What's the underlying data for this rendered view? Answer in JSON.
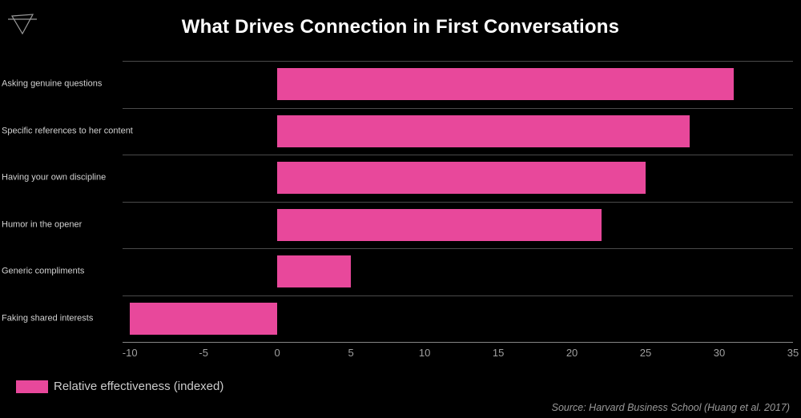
{
  "header": {
    "title": "What Drives Connection in First Conversations",
    "logo_icon": "earth-triangle-icon"
  },
  "legend": {
    "label": "Relative effectiveness (indexed)",
    "swatch_color": "#e8489b"
  },
  "source": {
    "text": "Source: Harvard Business School (Huang et al. 2017)"
  },
  "colors": {
    "background": "#000000",
    "bar": "#e8489b",
    "title_text": "#ffffff",
    "category_text": "#d2d2d2",
    "tick_text": "#a0a0a0",
    "grid_line": "#4a4a4a",
    "axis_line": "#858585",
    "legend_text": "#cccccc",
    "source_text": "#9a9a9a",
    "logo_stroke": "#9a9a9a"
  },
  "chart_data": {
    "type": "bar",
    "orientation": "horizontal",
    "title": "What Drives Connection in First Conversations",
    "categories": [
      "Asking genuine questions",
      "Specific references to her content",
      "Having your own discipline",
      "Humor in the opener",
      "Generic compliments",
      "Faking shared interests"
    ],
    "values": [
      31,
      28,
      25,
      22,
      5,
      -10
    ],
    "series_name": "Relative effectiveness (indexed)",
    "xlabel": "",
    "ylabel": "",
    "xticks": [
      -10,
      -5,
      0,
      5,
      10,
      15,
      20,
      25,
      30,
      35
    ],
    "xlim": [
      -10.5,
      35
    ],
    "grid": "horizontal-row-separators-only",
    "legend_position": "bottom-left",
    "source_position": "bottom-right"
  }
}
